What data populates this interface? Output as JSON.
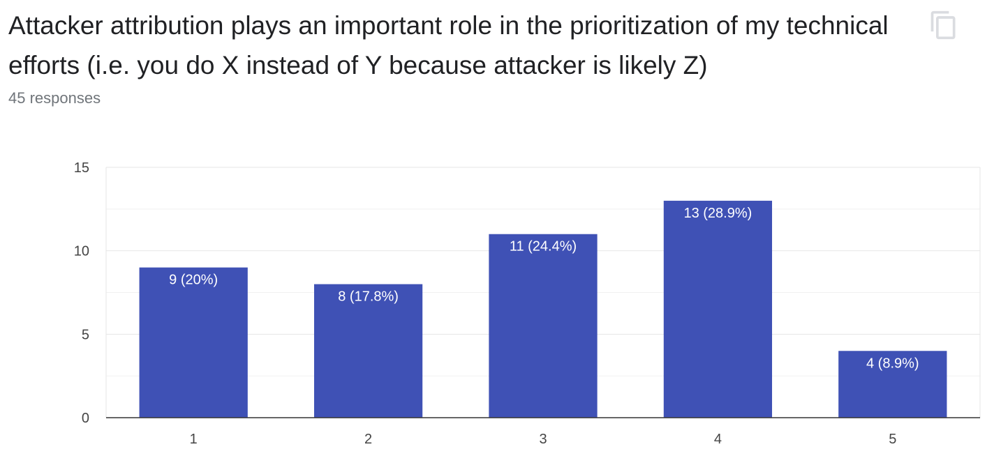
{
  "header": {
    "title": "Attacker attribution plays an important role in the prioritization of my technical efforts (i.e. you do X instead of Y because attacker is likely Z)",
    "responses": "45 responses",
    "copy_icon": "copy-icon"
  },
  "chart_data": {
    "type": "bar",
    "categories": [
      "1",
      "2",
      "3",
      "4",
      "5"
    ],
    "values": [
      9,
      8,
      11,
      13,
      4
    ],
    "data_labels": [
      "9 (20%)",
      "8 (17.8%)",
      "11 (24.4%)",
      "13 (28.9%)",
      "4 (8.9%)"
    ],
    "title": "",
    "xlabel": "",
    "ylabel": "",
    "ylim": [
      0,
      15
    ],
    "yticks": [
      0,
      5,
      10,
      15
    ],
    "grid": true,
    "legend": "none",
    "bar_color": "#3f51b5"
  }
}
